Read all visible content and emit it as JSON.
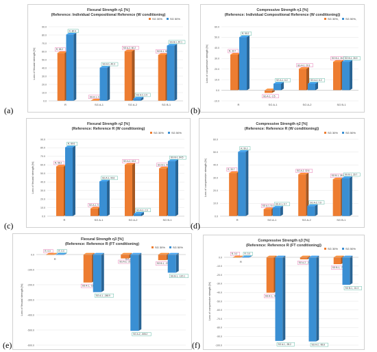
{
  "colors": {
    "sg30": "#ed7d31",
    "sg50": "#3a8fd3"
  },
  "panels": [
    {
      "letter": "(a)",
      "box": "a"
    },
    {
      "letter": "(b)",
      "box": "b"
    },
    {
      "letter": "(c)",
      "box": "c"
    },
    {
      "letter": "(d)",
      "box": "d"
    },
    {
      "letter": "(e)",
      "box": "e"
    },
    {
      "letter": "(f)",
      "box": "f"
    }
  ],
  "chart_data": [
    {
      "type": "bar",
      "title": "Flexural Strength η1 [%]",
      "subtitle": "(Reference: Individual Compositional Reference (W conditioning)",
      "ylabel": "Loss of flexural strength [%]",
      "ylim": [
        0,
        90
      ],
      "yticks": [
        "0.0",
        "10.0",
        "20.0",
        "30.0",
        "40.0",
        "50.0",
        "60.0",
        "70.0",
        "80.0",
        "90.0"
      ],
      "categories": [
        "R",
        "SG A-1",
        "SG A-2",
        "SG B-1"
      ],
      "legend": [
        "SG 30%",
        "SG 50%"
      ],
      "series": [
        {
          "name": "SG 30%",
          "values": [
            58.2,
            0.5,
            60.2,
            55.8
          ],
          "labels": [
            "R, 58.2",
            "SG A-1, 0.5",
            "SG A-2, 60.2",
            "SG B-1, 55.8"
          ]
        },
        {
          "name": "SG 50%",
          "values": [
            80.6,
            40.3,
            2.9,
            67.1
          ],
          "labels": [
            "R, 80.6",
            "SG A-1, 40.3",
            "SG A-2, 2.9",
            "SG B-1, 67.1"
          ]
        }
      ]
    },
    {
      "type": "bar",
      "title": "Compressive Strength η1 [%]",
      "subtitle": "(Reference: Individual Compositional Reference (W conditioning))",
      "ylabel": "Loss of compressive strength [%]",
      "ylim": [
        -10,
        60
      ],
      "yticks": [
        "-10.0",
        "0.0",
        "10.0",
        "20.0",
        "30.0",
        "40.0",
        "50.0",
        "60.0"
      ],
      "categories": [
        "R",
        "SG A-1",
        "SG A-2",
        "SG B-1"
      ],
      "legend": [
        "SG 30%,",
        "SG 50%,"
      ],
      "series": [
        {
          "name": "SG 30%,",
          "values": [
            33.7,
            -2.5,
            20.3,
            26.9
          ],
          "labels": [
            "R, 33.7",
            "SG A-1, -2.5",
            "SG A-2, 20.3",
            "SG B-1, 26.9"
          ]
        },
        {
          "name": "SG 50%,",
          "values": [
            50.2,
            6.2,
            6.2,
            26.9
          ],
          "labels": [
            "R, 50.2",
            "SG A-1, 6.2",
            "SG A-2, 6.2",
            "SG B-1, 26.9"
          ]
        }
      ]
    },
    {
      "type": "bar",
      "title": "Flexural Strength η2 [%]",
      "subtitle": "(Reference: Reference R (W conditioning)",
      "ylabel": "Loss of flexural strength [%]",
      "ylim": [
        0,
        90
      ],
      "yticks": [
        "0.0",
        "10.0",
        "20.0",
        "30.0",
        "40.0",
        "50.0",
        "60.0",
        "70.0",
        "80.0",
        "90.0"
      ],
      "categories": [
        "R",
        "SG A-1",
        "SG A-2",
        "SG B-1"
      ],
      "legend": [
        "SG 30%",
        "SG 50%"
      ],
      "series": [
        {
          "name": "SG 30%",
          "values": [
            58.2,
            9.0,
            60.2,
            56.0
          ],
          "labels": [
            "R, 58.2",
            "SG A-1, 9.0",
            "SG A-2, 60.2",
            "SG B-1, 56.0"
          ]
        },
        {
          "name": "SG 50%",
          "values": [
            80.6,
            40.6,
            2.9,
            64.5
          ],
          "labels": [
            "R, 80.6",
            "SG A-1, 40.6",
            "SG A-2, 2.9",
            "SG B-1, 64.5"
          ]
        }
      ]
    },
    {
      "type": "bar",
      "title": "Compressive Strength η2 [%]",
      "subtitle": "(Reference: Reference R (W conditioning))",
      "ylabel": "Loss of compressive strength [%]",
      "ylim": [
        0,
        60
      ],
      "yticks": [
        "0.0",
        "10.0",
        "20.0",
        "30.0",
        "40.0",
        "50.0",
        "60.0"
      ],
      "categories": [
        "R",
        "SG A-1",
        "SG A-2",
        "SG B-1"
      ],
      "legend": [
        "SG 30%",
        "SG 50%"
      ],
      "series": [
        {
          "name": "SG 30%",
          "values": [
            33.7,
            5.4,
            32.6,
            28.8
          ],
          "labels": [
            "R, 33.7",
            "SG A-1, 5.4",
            "SG A-2, 32.6",
            "SG B-1, 28.8"
          ]
        },
        {
          "name": "SG 50%",
          "values": [
            50.2,
            6.7,
            7.9,
            29.7
          ],
          "labels": [
            "R, 50.2",
            "SG A-1, 6.7",
            "SG A-2, 7.9",
            "SG B-1, 29.7"
          ]
        }
      ]
    },
    {
      "type": "bar",
      "title": "Flexural Strength η3 [%]",
      "subtitle": "(Reference: Reference R (FT conditioning)",
      "ylabel": "Loss of flexural strength [%]",
      "ylim": [
        -600,
        0
      ],
      "yticks": [
        "-600.0",
        "-500.0",
        "-400.0",
        "-300.0",
        "-200.0",
        "-100.0",
        "0.0"
      ],
      "categories": [
        "R",
        "SG A-1",
        "SG A-2",
        "SG B-1"
      ],
      "legend": [
        "SG 30%",
        "SG 50%"
      ],
      "series": [
        {
          "name": "SG 30%",
          "values": [
            0.0,
            -185.1,
            -25.5,
            -37.0
          ],
          "labels": [
            "R, 0.0",
            "SG A-1, -185.1",
            "SG A-2, -25.5",
            "SG B-1, -37.0"
          ]
        },
        {
          "name": "SG 50%",
          "values": [
            0.0,
            -248.9,
            -505.2,
            -120.1
          ],
          "labels": [
            "R, 0.0",
            "SG A-1, -248.9",
            "SG A-2, -505.2",
            "SG B-1, -120.1"
          ]
        }
      ]
    },
    {
      "type": "bar",
      "title": "Compressive Strength η3 [%]",
      "subtitle": "(Reference: Reference R (FT conditioning))",
      "ylabel": "Loss of compressive strength [%]",
      "ylim": [
        -100,
        0
      ],
      "yticks": [
        "-100.0",
        "-90.0",
        "-80.0",
        "-70.0",
        "-60.0",
        "-50.0",
        "-40.0",
        "-30.0",
        "-20.0",
        "-10.0",
        "0.0"
      ],
      "categories": [
        "R",
        "SG A-1",
        "SG A-2",
        "SG B-1"
      ],
      "legend": [
        "SG 30%",
        "SG 50%"
      ],
      "series": [
        {
          "name": "SG 30%",
          "values": [
            0.0,
            -40.3,
            -2.3,
            -7.8
          ],
          "labels": [
            "R, 0.0",
            "SG A-1, -40.3",
            "SG A-2, -2.3",
            "SG B-1, -7.8"
          ]
        },
        {
          "name": "SG 50%",
          "values": [
            0.0,
            -95.2,
            -95.8,
            -31.3
          ],
          "labels": [
            "R, 0.0",
            "SG A-1, -95.2",
            "SG A-2, -95.8",
            "SG B-1, -31.3"
          ]
        }
      ]
    }
  ]
}
